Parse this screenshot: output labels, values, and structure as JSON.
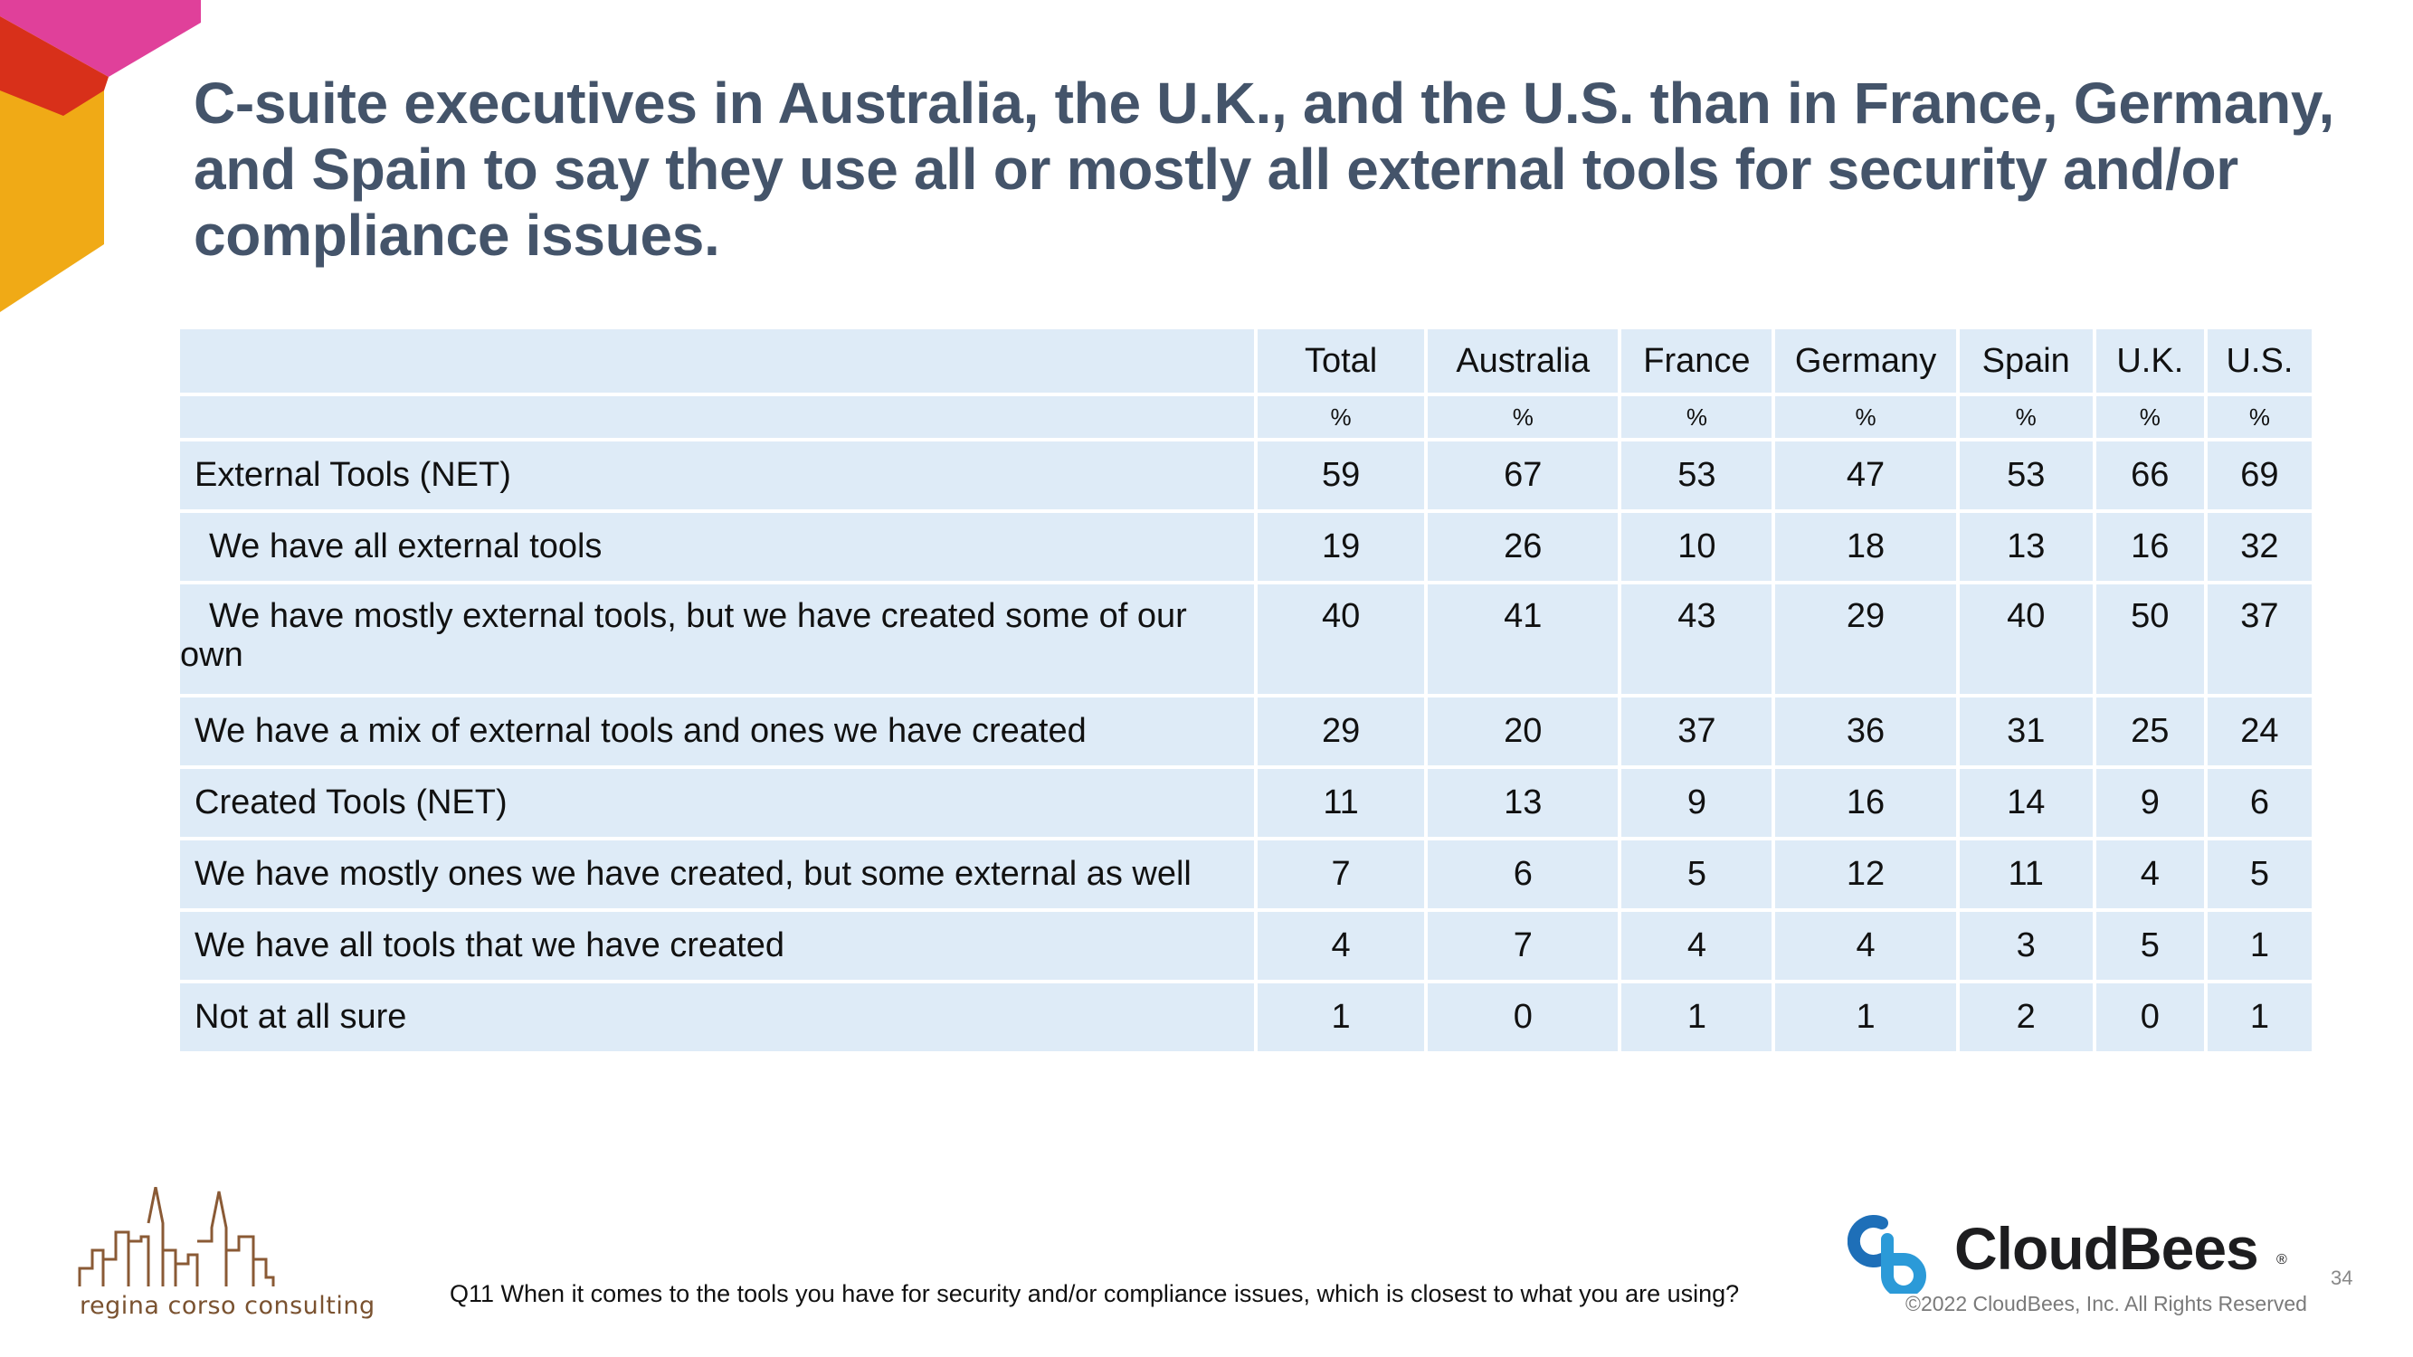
{
  "slide": {
    "title": "C-suite executives in Australia, the U.K., and the U.S. than in France, Germany, and Spain to say they use all or mostly all external tools for security and/or compliance issues.",
    "question": "Q11 When it comes to the tools you have for security and/or compliance issues, which is closest to what you are using?",
    "page_number": "34"
  },
  "table": {
    "headers": [
      "",
      "Total",
      "Australia",
      "France",
      "Germany",
      "Spain",
      "U.K.",
      "U.S."
    ],
    "units": [
      "",
      "%",
      "%",
      "%",
      "%",
      "%",
      "%",
      "%"
    ],
    "rows": [
      {
        "label": "External Tools (NET)",
        "indent": false,
        "values": [
          "59",
          "67",
          "53",
          "47",
          "53",
          "66",
          "69"
        ]
      },
      {
        "label": "We have all external tools",
        "indent": true,
        "values": [
          "19",
          "26",
          "10",
          "18",
          "13",
          "16",
          "32"
        ]
      },
      {
        "label": "We have mostly external tools, but we have created some of our own",
        "indent": true,
        "values": [
          "40",
          "41",
          "43",
          "29",
          "40",
          "50",
          "37"
        ]
      },
      {
        "label": "We have a mix of external tools and ones we have created",
        "indent": false,
        "values": [
          "29",
          "20",
          "37",
          "36",
          "31",
          "25",
          "24"
        ]
      },
      {
        "label": "Created Tools (NET)",
        "indent": false,
        "values": [
          "11",
          "13",
          "9",
          "16",
          "14",
          "9",
          "6"
        ]
      },
      {
        "label": "We have mostly ones we have created, but some external as well",
        "indent": false,
        "values": [
          "7",
          "6",
          "5",
          "12",
          "11",
          "4",
          "5"
        ]
      },
      {
        "label": "We have all tools that we have created",
        "indent": false,
        "values": [
          "4",
          "7",
          "4",
          "4",
          "3",
          "5",
          "1"
        ]
      },
      {
        "label": "Not at all sure",
        "indent": false,
        "values": [
          "1",
          "0",
          "1",
          "1",
          "2",
          "0",
          "1"
        ]
      }
    ]
  },
  "branding": {
    "left_logo_text": "regina corso consulting",
    "right_logo_name": "CloudBees",
    "right_logo_reg": "®",
    "copyright": "©2022 CloudBees, Inc. All Rights Reserved"
  },
  "colors": {
    "title": "#44546a",
    "table_cell": "#deebf7",
    "corner_pink": "#e0409a",
    "corner_orange": "#f0aa16",
    "corner_red": "#d8301a",
    "cloudbees_blue": "#2b9ad8"
  }
}
